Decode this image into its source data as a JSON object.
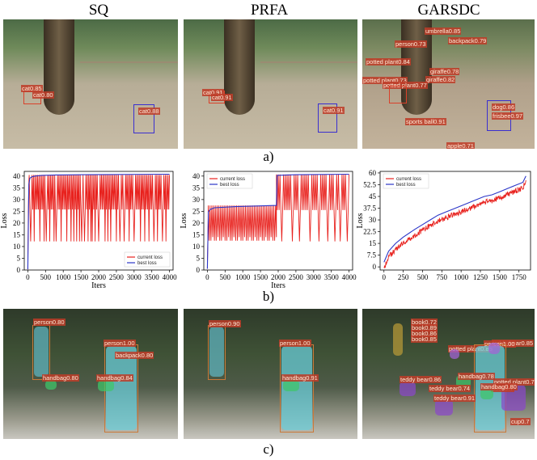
{
  "column_titles": [
    "SQ",
    "PRFA",
    "GARSDC"
  ],
  "captions": {
    "a": "a)",
    "b": "b)",
    "c": "c)"
  },
  "row_a": {
    "sq": [
      "cat|0.85",
      "cat|0.80",
      "cat|0.88"
    ],
    "prfa": [
      "cat|0.91",
      "cat|0.91",
      "cat|0.91"
    ],
    "garsdc": [
      "umbrella|0.85",
      "backpack|0.79",
      "person|0.73",
      "potted plant|0.84",
      "giraffe|0.78",
      "potted plant|0.73",
      "giraffe|0.82",
      "potted plant|0.77",
      "dog|0.86",
      "frisbee|0.97",
      "sports ball|0.91",
      "apple|0.71"
    ]
  },
  "row_c": {
    "sq": [
      "person|0.80",
      "person|1.00",
      "backpack|0.80",
      "handbag|0.80",
      "handbag|0.84"
    ],
    "prfa": [
      "person|0.90",
      "person|1.00",
      "handbag|0.91"
    ],
    "garsdc": [
      "book|0.72",
      "book|0.89",
      "book|0.86",
      "book|0.85",
      "teddy bear|0.85",
      "potted plant|0.85",
      "person|1.00",
      "teddy bear|0.86",
      "handbag|0.78",
      "teddy bear|0.74",
      "potted plant|0.7",
      "book|0.7",
      "teddy bear|0.91",
      "handbag|0.80",
      "cup|0.7"
    ]
  },
  "chart_data": [
    {
      "type": "line",
      "panel": "SQ",
      "xlabel": "Iters",
      "ylabel": "Loss",
      "xlim": [
        -100,
        4100
      ],
      "ylim": [
        0,
        42
      ],
      "xticks": [
        0,
        500,
        1000,
        1500,
        2000,
        2500,
        3000,
        3500,
        4000
      ],
      "yticks": [
        0,
        5,
        10,
        15,
        20,
        25,
        30,
        35,
        40
      ],
      "legend": "bottom-right",
      "series": [
        {
          "name": "current loss",
          "color": "#e8221e",
          "pattern": "oscillating",
          "upper": 40.5,
          "lower": 25.8,
          "dip_value": 12.2,
          "dips_at": [
            80,
            180,
            330,
            460,
            520,
            610,
            730,
            800,
            930,
            1100,
            1210,
            1300,
            1380,
            1450,
            1520,
            1600,
            1700,
            1780,
            1820,
            1900,
            2000,
            2180,
            2260,
            2340,
            2500,
            2600,
            2720,
            2850,
            3000,
            3180,
            3300,
            3420,
            3560,
            3650,
            3800,
            3900
          ]
        },
        {
          "name": "best loss",
          "color": "#2a35c8",
          "pattern": "monotone",
          "x": [
            0,
            30,
            60,
            100,
            200,
            400,
            800,
            1600,
            4000
          ],
          "y": [
            0.3,
            36.5,
            39.1,
            39.6,
            40.0,
            40.3,
            40.5,
            40.6,
            40.8
          ]
        }
      ]
    },
    {
      "type": "line",
      "panel": "PRFA",
      "xlabel": "Iters",
      "ylabel": "Loss",
      "xlim": [
        -100,
        4100
      ],
      "ylim": [
        0,
        42
      ],
      "xticks": [
        0,
        500,
        1000,
        1500,
        2000,
        2500,
        3000,
        3500,
        4000
      ],
      "yticks": [
        0,
        5,
        10,
        15,
        20,
        25,
        30,
        35,
        40
      ],
      "legend": "top-left",
      "series": [
        {
          "name": "current loss",
          "color": "#e8221e",
          "pattern": "two-regime",
          "phase1_range": [
            0,
            1950
          ],
          "phase1_upper": 27.5,
          "phase1_lower": 12.5,
          "phase2_range": [
            1950,
            4000
          ],
          "phase2_upper": 40.7,
          "phase2_lower": 25.5,
          "dip_value": 12.2,
          "dips_at": [
            2100,
            2400,
            2600,
            2900,
            3150,
            3400,
            3600,
            3750,
            3950
          ]
        },
        {
          "name": "best loss",
          "color": "#2a35c8",
          "pattern": "monotone",
          "x": [
            0,
            30,
            80,
            200,
            800,
            1500,
            1950,
            1970,
            2500,
            4000
          ],
          "y": [
            0.5,
            24.8,
            25.8,
            26.5,
            27.0,
            27.3,
            27.5,
            40.3,
            40.6,
            40.8
          ]
        }
      ]
    },
    {
      "type": "line",
      "panel": "GARSDC",
      "xlabel": "",
      "ylabel": "Loss",
      "xlim": [
        -50,
        1900
      ],
      "ylim": [
        -2,
        61
      ],
      "xticks": [
        0,
        250,
        500,
        750,
        1000,
        1250,
        1500,
        1750
      ],
      "yticks": [
        0,
        7.5,
        15,
        22.5,
        30,
        37.5,
        45,
        52.5,
        60
      ],
      "legend": "top-left",
      "series": [
        {
          "name": "current loss",
          "color": "#e8221e",
          "pattern": "noisy-rising",
          "x": [
            0,
            60,
            150,
            250,
            400,
            500,
            600,
            700,
            800,
            900,
            1000,
            1100,
            1200,
            1300,
            1400,
            1500,
            1600,
            1700,
            1800,
            1840
          ],
          "y": [
            1,
            8,
            13,
            17,
            22,
            25,
            28,
            31,
            33,
            35,
            37,
            39,
            41,
            43,
            44,
            46,
            48,
            50,
            52,
            57
          ]
        },
        {
          "name": "best loss",
          "color": "#2a35c8",
          "pattern": "monotone",
          "x": [
            0,
            60,
            150,
            250,
            400,
            500,
            600,
            700,
            800,
            900,
            1000,
            1100,
            1200,
            1300,
            1400,
            1500,
            1600,
            1700,
            1800,
            1840
          ],
          "y": [
            3,
            10,
            15,
            19,
            24,
            27,
            30,
            33,
            35,
            37,
            39,
            41,
            43,
            45,
            46,
            48,
            50,
            52,
            54,
            58
          ]
        }
      ]
    }
  ]
}
